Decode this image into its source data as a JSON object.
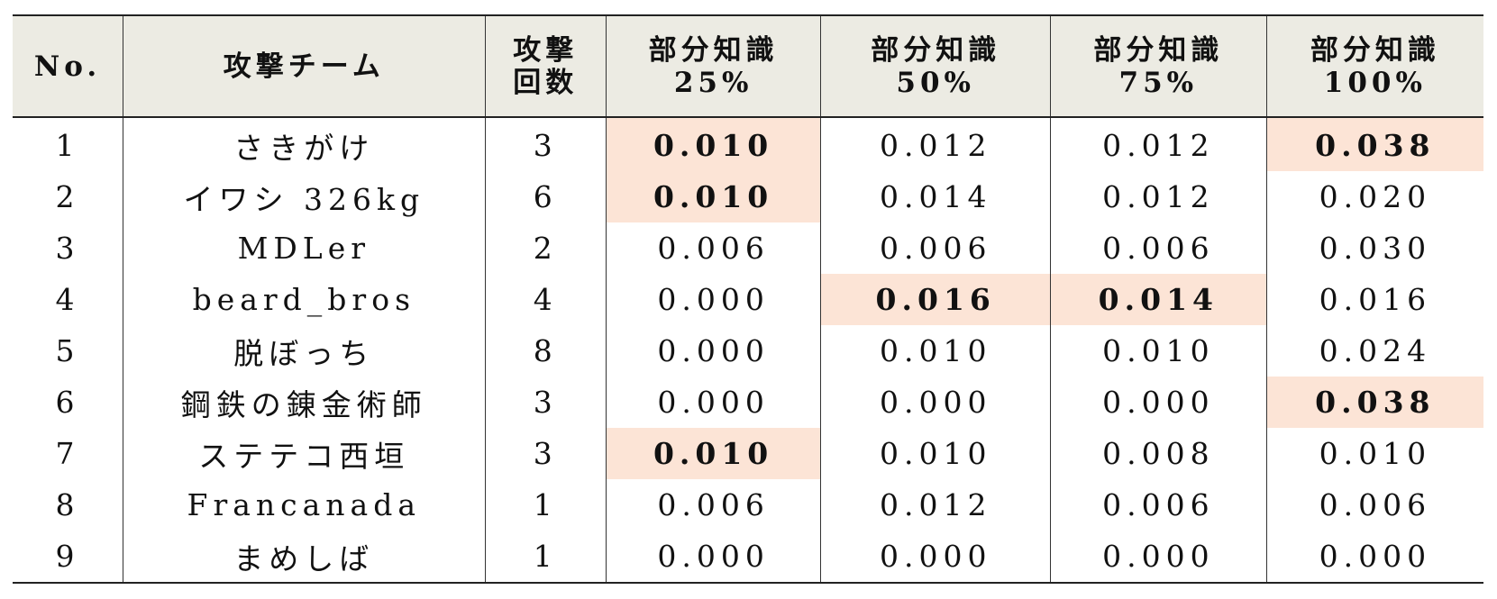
{
  "table": {
    "headers": {
      "no": "No.",
      "team": "攻撃チーム",
      "count": [
        "攻撃",
        "回数"
      ],
      "p25": [
        "部分知識",
        "25%"
      ],
      "p50": [
        "部分知識",
        "50%"
      ],
      "p75": [
        "部分知識",
        "75%"
      ],
      "p100": [
        "部分知識",
        "100%"
      ]
    },
    "rows": [
      {
        "no": "1",
        "team": "さきがけ",
        "count": "3",
        "p25": "0.010",
        "p50": "0.012",
        "p75": "0.012",
        "p100": "0.038",
        "bold": [
          "p25",
          "p100"
        ]
      },
      {
        "no": "2",
        "team": "イワシ 326kg",
        "count": "6",
        "p25": "0.010",
        "p50": "0.014",
        "p75": "0.012",
        "p100": "0.020",
        "bold": [
          "p25"
        ]
      },
      {
        "no": "3",
        "team": "MDLer",
        "count": "2",
        "p25": "0.006",
        "p50": "0.006",
        "p75": "0.006",
        "p100": "0.030",
        "bold": []
      },
      {
        "no": "4",
        "team": "beard_bros",
        "count": "4",
        "p25": "0.000",
        "p50": "0.016",
        "p75": "0.014",
        "p100": "0.016",
        "bold": [
          "p50",
          "p75"
        ]
      },
      {
        "no": "5",
        "team": "脱ぼっち",
        "count": "8",
        "p25": "0.000",
        "p50": "0.010",
        "p75": "0.010",
        "p100": "0.024",
        "bold": []
      },
      {
        "no": "6",
        "team": "鋼鉄の錬金術師",
        "count": "3",
        "p25": "0.000",
        "p50": "0.000",
        "p75": "0.000",
        "p100": "0.038",
        "bold": [
          "p100"
        ]
      },
      {
        "no": "7",
        "team": "ステテコ西垣",
        "count": "3",
        "p25": "0.010",
        "p50": "0.010",
        "p75": "0.008",
        "p100": "0.010",
        "bold": [
          "p25"
        ]
      },
      {
        "no": "8",
        "team": "Francanada",
        "count": "1",
        "p25": "0.006",
        "p50": "0.012",
        "p75": "0.006",
        "p100": "0.006",
        "bold": []
      },
      {
        "no": "9",
        "team": "まめしば",
        "count": "1",
        "p25": "0.000",
        "p50": "0.000",
        "p75": "0.000",
        "p100": "0.000",
        "bold": []
      }
    ]
  },
  "colors": {
    "header_bg": "#ecebe3",
    "highlight_bg": "#fce4d6",
    "rule": "#222222"
  }
}
